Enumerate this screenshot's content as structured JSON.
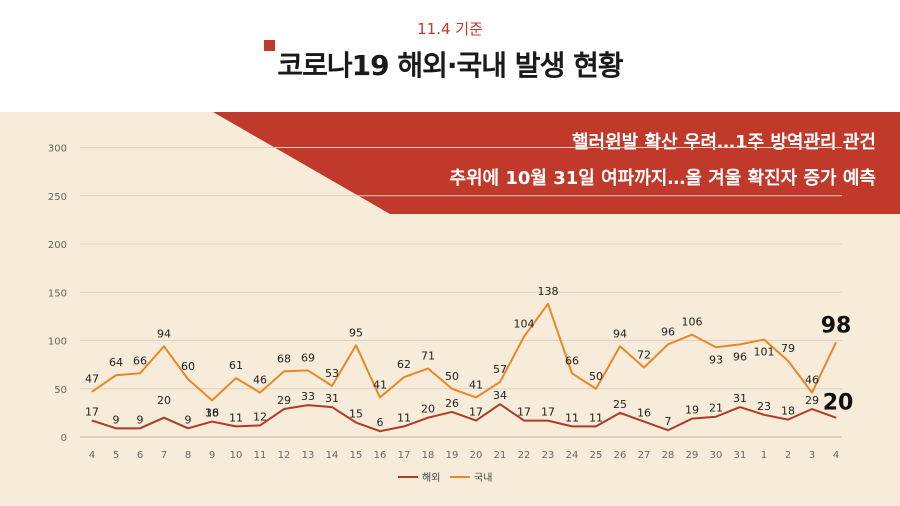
{
  "header": {
    "date": "11.4 기준",
    "title": "코로나19 해외·국내 발생 현황"
  },
  "banner": {
    "line1": "핼러윈발 확산 우려…1주 방역관리 관건",
    "line2": "추위에 10월 31일 여파까지…올 겨울 확진자 증가 예측",
    "color": "#c0392b"
  },
  "chart_data": {
    "type": "line",
    "categories": [
      "4",
      "5",
      "6",
      "7",
      "8",
      "9",
      "10",
      "11",
      "12",
      "13",
      "14",
      "15",
      "16",
      "17",
      "18",
      "19",
      "20",
      "21",
      "22",
      "23",
      "24",
      "25",
      "26",
      "27",
      "28",
      "29",
      "30",
      "31",
      "1",
      "2",
      "3",
      "4"
    ],
    "series": [
      {
        "name": "해외",
        "color": "#b03a26",
        "values": [
          17,
          9,
          9,
          20,
          9,
          16,
          11,
          12,
          29,
          33,
          31,
          15,
          6,
          11,
          20,
          26,
          17,
          34,
          17,
          17,
          11,
          11,
          25,
          16,
          7,
          19,
          21,
          31,
          23,
          18,
          29,
          20
        ]
      },
      {
        "name": "국내",
        "color": "#e8862a",
        "values": [
          47,
          64,
          66,
          94,
          60,
          38,
          61,
          46,
          68,
          69,
          53,
          95,
          41,
          62,
          71,
          50,
          41,
          57,
          104,
          138,
          66,
          50,
          94,
          72,
          96,
          106,
          93,
          96,
          101,
          79,
          46,
          98
        ]
      }
    ],
    "yticks": [
      0,
      50,
      100,
      150,
      200,
      250,
      300
    ],
    "ylim": [
      0,
      300
    ],
    "grid": true,
    "legend": "bottom-center"
  }
}
